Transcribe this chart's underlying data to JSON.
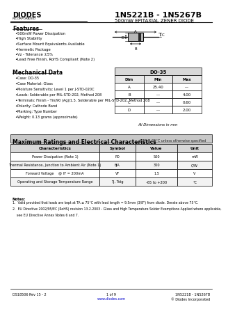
{
  "title_part": "1N5221B - 1N5267B",
  "title_sub": "500mW EPITAXIAL ZENER DIODE",
  "logo_text": "DIODES",
  "logo_sub": "INCORPORATED",
  "features_title": "Features",
  "features": [
    "500mW Power Dissipation",
    "High Stability",
    "Surface Mount Equivalents Available",
    "Hermetic Package",
    "Vz - Tolerance ±5%",
    "Lead Free Finish, RoHS Compliant (Note 2)"
  ],
  "mech_title": "Mechanical Data",
  "mech_items": [
    "Case: DO-35",
    "Case Material: Glass",
    "Moisture Sensitivity: Level 1 per J-STD-020C",
    "Leads: Solderable per MIL-STD-202, Method 208",
    "Terminals: Finish - Tin/90 (Ag)/1.5. Solderable per MIL-STD-202, Method 208",
    "Polarity: Cathode Band",
    "Marking: Type Number",
    "Weight: 0.13 grams (approximate)"
  ],
  "table_title": "DO-35",
  "table_headers": [
    "Dim",
    "Min",
    "Max"
  ],
  "table_rows": [
    [
      "A",
      "25.40",
      "---"
    ],
    [
      "B",
      "---",
      "4.00"
    ],
    [
      "C",
      "---",
      "0.60"
    ],
    [
      "D",
      "---",
      "2.00"
    ]
  ],
  "table_note": "All Dimensions in mm",
  "ratings_title": "Maximum Ratings and Electrical Characteristics",
  "ratings_note": "@TA = 25°C unless otherwise specified",
  "ratings_headers": [
    "Characteristics",
    "Symbol",
    "Value",
    "Unit"
  ],
  "ratings_rows": [
    [
      "Power Dissipation (Note 1)",
      "PD",
      "500",
      "mW"
    ],
    [
      "Thermal Resistance, Junction to Ambient Air (Note 1)",
      "θJA",
      "300",
      "C/W"
    ],
    [
      "Forward Voltage    @ IF = 200mA",
      "VF",
      "1.5",
      "V"
    ],
    [
      "Operating and Storage Temperature Range",
      "TJ, Tstg",
      "-65 to +200",
      "°C"
    ]
  ],
  "notes": [
    "1.  Valid provided that leads are kept at TA ≤ 75°C with lead length = 9.5mm (3/8\") from diode. Derate above 75°C.",
    "2.  EU Directive 2002/95/EC (RoHS) revision 13.2.2003 - Glass and High Temperature Solder Exemptions Applied where applicable,",
    "    see EU Directive Annex Notes 6 and 7."
  ],
  "footer_left": "DS18506 Rev 15 - 2",
  "footer_mid": "1 of 9",
  "footer_url": "www.diodes.com",
  "footer_right": "1N5221B - 1N5267B",
  "footer_copy": "© Diodes Incorporated",
  "bg_color": "#ffffff",
  "text_color": "#000000"
}
